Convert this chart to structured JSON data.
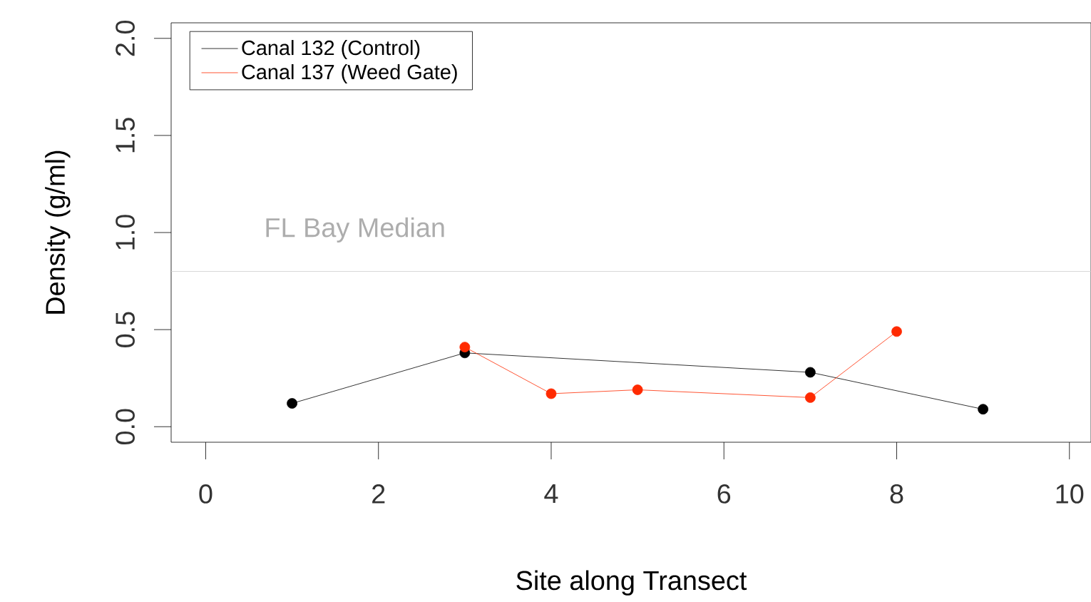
{
  "chart_data": {
    "type": "line",
    "xlabel": "Site along Transect",
    "ylabel": "Density (g/ml)",
    "series": [
      {
        "name": "Canal 132 (Control)",
        "color": "#000000",
        "x": [
          1,
          3,
          7,
          9
        ],
        "values": [
          0.12,
          0.38,
          0.28,
          0.09
        ]
      },
      {
        "name": "Canal 137 (Weed Gate)",
        "color": "#ff2a00",
        "x": [
          3,
          4,
          5,
          7,
          8
        ],
        "values": [
          0.41,
          0.17,
          0.19,
          0.15,
          0.49
        ]
      }
    ],
    "xlim": [
      -0.4,
      10.25
    ],
    "ylim": [
      -0.08,
      2.08
    ],
    "xticks": [
      0,
      2,
      4,
      6,
      8,
      10
    ],
    "yticks": [
      {
        "value": 0,
        "label": "0.0"
      },
      {
        "value": 0.5,
        "label": "0.5"
      },
      {
        "value": 1,
        "label": "1.0"
      },
      {
        "value": 1.5,
        "label": "1.5"
      },
      {
        "value": 2,
        "label": "2.0"
      }
    ],
    "ref_lines": [
      {
        "axis": "y",
        "value": 0.8,
        "label": "FL Bay Median",
        "color": "#cccccc"
      }
    ],
    "legend": "top left",
    "marker": "circle",
    "grid": false
  }
}
